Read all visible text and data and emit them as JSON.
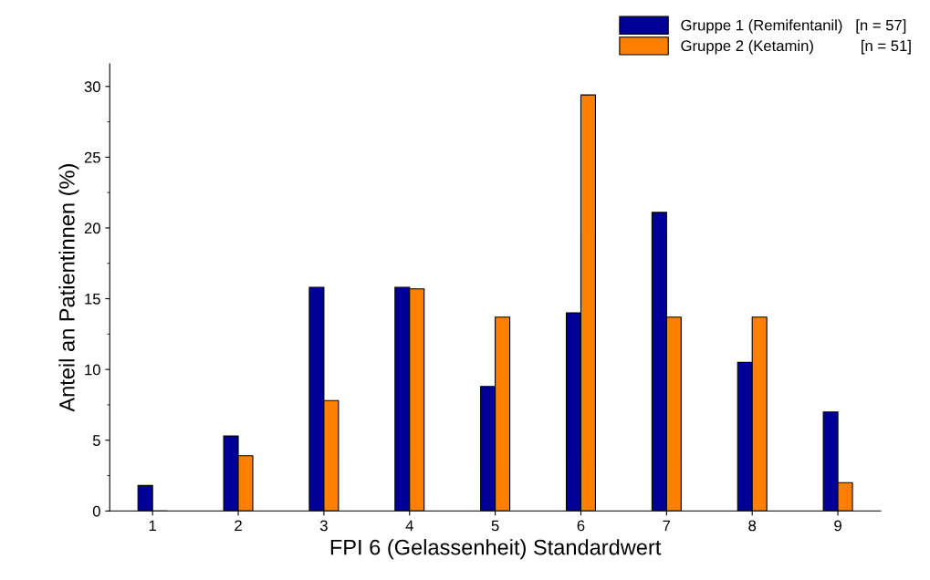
{
  "chart_data": {
    "type": "bar",
    "xlabel": "FPI 6 (Gelassenheit) Standardwert",
    "ylabel": "Anteil an Patientinnen (%)",
    "categories": [
      "1",
      "2",
      "3",
      "4",
      "5",
      "6",
      "7",
      "8",
      "9"
    ],
    "series": [
      {
        "name": "Gruppe 1 (Remifentanil)   [n = 57]",
        "color": "#000099",
        "values": [
          1.8,
          5.3,
          15.8,
          15.8,
          8.8,
          14.0,
          21.1,
          10.5,
          7.0
        ]
      },
      {
        "name": "Gruppe 2 (Ketamin)           [n = 51]",
        "color": "#ff8000",
        "values": [
          0,
          3.9,
          7.8,
          15.7,
          13.7,
          29.4,
          13.7,
          13.7,
          2.0
        ]
      }
    ],
    "ylim": [
      0,
      31.6
    ],
    "yticks": [
      0,
      5,
      10,
      15,
      20,
      25,
      30
    ],
    "grid": false,
    "legend": "top right"
  }
}
